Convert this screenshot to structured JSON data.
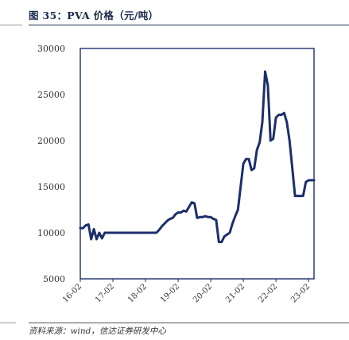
{
  "figure": {
    "title": "图 35：PVA 价格（元/吨）",
    "source": "资料来源：wind，信达证券研发中心"
  },
  "colors": {
    "line": "#1c2f6b",
    "axis": "#1c2f6b",
    "frame": "#1c2f6b"
  },
  "chart_data": {
    "type": "line",
    "title": "",
    "xlabel": "",
    "ylabel": "",
    "ylim": [
      5000,
      30000
    ],
    "yticks": [
      5000,
      10000,
      15000,
      20000,
      25000,
      30000
    ],
    "xticks": [
      "16-02",
      "17-02",
      "18-02",
      "19-02",
      "20-02",
      "21-02",
      "22-02",
      "23-02"
    ],
    "grid": false,
    "series": [
      {
        "x": [
          "2016-02",
          "2016-03",
          "2016-04",
          "2016-05",
          "2016-06",
          "2016-07",
          "2016-08",
          "2016-09",
          "2016-10",
          "2016-11",
          "2016-12",
          "2017-01",
          "2017-02",
          "2017-04",
          "2017-06",
          "2017-09",
          "2017-12",
          "2018-03",
          "2018-06",
          "2018-07",
          "2018-08",
          "2018-09",
          "2018-10",
          "2018-11",
          "2018-12",
          "2019-01",
          "2019-02",
          "2019-03",
          "2019-04",
          "2019-05",
          "2019-06",
          "2019-07",
          "2019-08",
          "2019-09",
          "2019-10",
          "2019-11",
          "2019-12",
          "2020-01",
          "2020-02",
          "2020-03",
          "2020-04",
          "2020-05",
          "2020-06",
          "2020-07",
          "2020-08",
          "2020-09",
          "2020-10",
          "2020-11",
          "2020-12",
          "2021-01",
          "2021-02",
          "2021-03",
          "2021-04",
          "2021-05",
          "2021-06",
          "2021-07",
          "2021-08",
          "2021-09",
          "2021-10",
          "2021-11",
          "2021-12",
          "2022-01",
          "2022-02",
          "2022-03",
          "2022-04",
          "2022-05",
          "2022-06",
          "2022-07",
          "2022-08",
          "2022-09",
          "2022-10",
          "2022-11",
          "2022-12",
          "2023-01",
          "2023-02",
          "2023-03",
          "2023-04"
        ],
        "values": [
          10500,
          10500,
          10800,
          10900,
          9300,
          10400,
          9300,
          10000,
          9400,
          10000,
          10000,
          10000,
          10000,
          10000,
          10000,
          10000,
          10000,
          10000,
          10000,
          10300,
          10700,
          11000,
          11300,
          11500,
          11600,
          12000,
          12200,
          12200,
          12400,
          12300,
          12800,
          13300,
          13200,
          11600,
          11700,
          11700,
          11800,
          11700,
          11700,
          11500,
          11400,
          9000,
          9000,
          9600,
          9800,
          10000,
          11000,
          11800,
          12500,
          15000,
          17500,
          18000,
          18000,
          16800,
          17000,
          19000,
          19800,
          22000,
          27500,
          26000,
          20000,
          20200,
          22500,
          22800,
          22800,
          23000,
          22000,
          20000,
          17000,
          14000,
          14000,
          14000,
          14000,
          15500,
          15700,
          15700,
          15700
        ]
      }
    ]
  }
}
